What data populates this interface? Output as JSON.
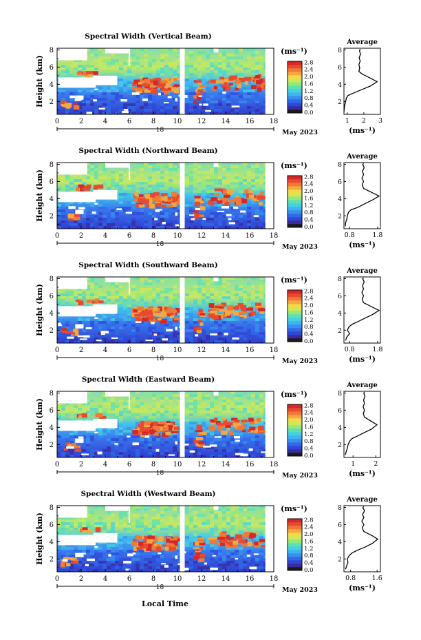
{
  "figure": {
    "xlabel_bottom": "Local Time",
    "date_label": "May 2023",
    "day_label": "18"
  },
  "colorbar": {
    "unit": "(ms⁻¹)",
    "colors": [
      "#1a1a1a",
      "#3a2b9e",
      "#3048d8",
      "#2f6ae8",
      "#3a90f0",
      "#3fb4f0",
      "#45d2e0",
      "#5fe0b0",
      "#96e87a",
      "#cfe85a",
      "#f4d84a",
      "#f5a840",
      "#f07a35",
      "#e84a30",
      "#d62828"
    ]
  },
  "chart_data": [
    {
      "type": "heatmap",
      "title": "Spectral Width (Vertical Beam)",
      "ylabel": "Height (km)",
      "xlim": [
        0,
        18
      ],
      "ylim": [
        0.5,
        8.2
      ],
      "xticks": [
        0,
        2,
        4,
        6,
        8,
        10,
        12,
        14,
        16,
        18
      ],
      "yticks": [
        2,
        4,
        6,
        8
      ],
      "gap": [
        10.2,
        10.6
      ],
      "data_end": 17.3,
      "colorbar_ticks": [
        "0.0",
        "0.4",
        "0.8",
        "1.2",
        "1.6",
        "2.0",
        "2.4",
        "2.8"
      ],
      "profile": {
        "title": "Average",
        "xlabel": "(ms⁻¹)",
        "xlim": [
          0.8,
          3.0
        ],
        "xticks": [
          1,
          2,
          3
        ],
        "xtick_labels": [
          "1",
          "2",
          "3"
        ],
        "ylim": [
          0.5,
          8.2
        ],
        "yticks": [
          2,
          4,
          6,
          8
        ],
        "points": [
          [
            0.8,
            0.8
          ],
          [
            0.82,
            1.2
          ],
          [
            0.85,
            1.6
          ],
          [
            0.9,
            2.0
          ],
          [
            0.95,
            2.4
          ],
          [
            1.05,
            2.7
          ],
          [
            1.4,
            3.0
          ],
          [
            1.9,
            3.4
          ],
          [
            2.4,
            3.8
          ],
          [
            2.8,
            4.3
          ],
          [
            2.4,
            4.7
          ],
          [
            1.9,
            5.2
          ],
          [
            1.7,
            5.5
          ],
          [
            1.75,
            5.9
          ],
          [
            1.7,
            6.3
          ],
          [
            1.78,
            6.7
          ],
          [
            1.72,
            7.1
          ],
          [
            1.8,
            7.5
          ],
          [
            1.74,
            7.9
          ],
          [
            1.78,
            8.1
          ]
        ]
      }
    },
    {
      "type": "heatmap",
      "title": "Spectral Width (Northward Beam)",
      "ylabel": "Height (km)",
      "xlim": [
        0,
        18
      ],
      "ylim": [
        0.5,
        8.2
      ],
      "xticks": [
        0,
        2,
        4,
        6,
        8,
        10,
        12,
        14,
        16,
        18
      ],
      "yticks": [
        2,
        4,
        6,
        8
      ],
      "gap": [
        10.2,
        10.6
      ],
      "data_end": 17.3,
      "colorbar_ticks": [
        "0.0",
        "0.4",
        "0.8",
        "1.2",
        "1.6",
        "2.0",
        "2.4",
        "2.8"
      ],
      "profile": {
        "title": "Average",
        "xlabel": "(ms⁻¹)",
        "xlim": [
          0.6,
          1.9
        ],
        "xticks": [
          0.8,
          1.8
        ],
        "xtick_labels": [
          "0.8",
          "1.8"
        ],
        "ylim": [
          0.5,
          8.2
        ],
        "yticks": [
          2,
          4,
          6,
          8
        ],
        "points": [
          [
            0.65,
            0.8
          ],
          [
            0.66,
            1.2
          ],
          [
            0.7,
            1.6
          ],
          [
            0.72,
            2.0
          ],
          [
            0.76,
            2.4
          ],
          [
            0.85,
            2.7
          ],
          [
            1.1,
            3.0
          ],
          [
            1.4,
            3.5
          ],
          [
            1.65,
            3.9
          ],
          [
            1.85,
            4.3
          ],
          [
            1.6,
            4.7
          ],
          [
            1.3,
            5.2
          ],
          [
            1.25,
            5.6
          ],
          [
            1.3,
            6.0
          ],
          [
            1.24,
            6.4
          ],
          [
            1.3,
            6.8
          ],
          [
            1.26,
            7.2
          ],
          [
            1.32,
            7.6
          ],
          [
            1.27,
            8.0
          ],
          [
            1.3,
            8.1
          ]
        ]
      }
    },
    {
      "type": "heatmap",
      "title": "Spectral Width (Southward Beam)",
      "ylabel": "Height (km)",
      "xlim": [
        0,
        18
      ],
      "ylim": [
        0.5,
        8.2
      ],
      "xticks": [
        0,
        2,
        4,
        6,
        8,
        10,
        12,
        14,
        16,
        18
      ],
      "yticks": [
        2,
        4,
        6,
        8
      ],
      "gap": [
        10.2,
        10.6
      ],
      "data_end": 17.3,
      "colorbar_ticks": [
        "0.0",
        "0.4",
        "0.8",
        "1.2",
        "1.6",
        "2.0",
        "2.4",
        "2.8"
      ],
      "profile": {
        "title": "Average",
        "xlabel": "(ms⁻¹)",
        "xlim": [
          0.6,
          1.9
        ],
        "xticks": [
          0.8,
          1.8
        ],
        "xtick_labels": [
          "0.8",
          "1.8"
        ],
        "ylim": [
          0.5,
          8.2
        ],
        "yticks": [
          2,
          4,
          6,
          8
        ],
        "points": [
          [
            0.66,
            0.8
          ],
          [
            0.7,
            1.2
          ],
          [
            0.8,
            1.6
          ],
          [
            0.72,
            2.0
          ],
          [
            0.78,
            2.4
          ],
          [
            0.9,
            2.7
          ],
          [
            1.1,
            3.0
          ],
          [
            1.35,
            3.4
          ],
          [
            1.6,
            3.8
          ],
          [
            1.85,
            4.3
          ],
          [
            1.6,
            4.7
          ],
          [
            1.3,
            5.2
          ],
          [
            1.25,
            5.6
          ],
          [
            1.3,
            6.0
          ],
          [
            1.24,
            6.4
          ],
          [
            1.3,
            6.8
          ],
          [
            1.26,
            7.2
          ],
          [
            1.32,
            7.6
          ],
          [
            1.27,
            8.0
          ],
          [
            1.3,
            8.1
          ]
        ]
      }
    },
    {
      "type": "heatmap",
      "title": "Spectral Width (Eastward Beam)",
      "ylabel": "Height (km)",
      "xlim": [
        0,
        18
      ],
      "ylim": [
        0.5,
        8.2
      ],
      "xticks": [
        0,
        2,
        4,
        6,
        8,
        10,
        12,
        14,
        16,
        18
      ],
      "yticks": [
        2,
        4,
        6,
        8
      ],
      "gap": [
        10.2,
        10.6
      ],
      "data_end": 17.3,
      "colorbar_ticks": [
        "0.0",
        "0.4",
        "0.8",
        "1.2",
        "1.6",
        "2.0",
        "2.4",
        "2.8"
      ],
      "profile": {
        "title": "Average",
        "xlabel": "(ms⁻¹)",
        "xlim": [
          0.6,
          2.2
        ],
        "xticks": [
          1,
          2
        ],
        "xtick_labels": [
          "1",
          "2"
        ],
        "ylim": [
          0.5,
          8.2
        ],
        "yticks": [
          2,
          4,
          6,
          8
        ],
        "points": [
          [
            0.66,
            0.8
          ],
          [
            0.7,
            1.2
          ],
          [
            0.75,
            1.6
          ],
          [
            0.78,
            2.0
          ],
          [
            0.85,
            2.4
          ],
          [
            0.95,
            2.7
          ],
          [
            1.2,
            3.0
          ],
          [
            1.5,
            3.4
          ],
          [
            1.8,
            3.8
          ],
          [
            2.05,
            4.3
          ],
          [
            1.8,
            4.7
          ],
          [
            1.5,
            5.2
          ],
          [
            1.45,
            5.6
          ],
          [
            1.5,
            6.0
          ],
          [
            1.44,
            6.4
          ],
          [
            1.5,
            6.8
          ],
          [
            1.46,
            7.2
          ],
          [
            1.52,
            7.6
          ],
          [
            1.47,
            8.0
          ],
          [
            1.5,
            8.1
          ]
        ]
      }
    },
    {
      "type": "heatmap",
      "title": "Spectral Width (Westward Beam)",
      "ylabel": "Height (km)",
      "xlim": [
        0,
        18
      ],
      "ylim": [
        0.5,
        8.2
      ],
      "xticks": [
        0,
        2,
        4,
        6,
        8,
        10,
        12,
        14,
        16,
        18
      ],
      "yticks": [
        2,
        4,
        6,
        8
      ],
      "gap": [
        10.2,
        10.6
      ],
      "data_end": 17.3,
      "colorbar_ticks": [
        "0.0",
        "0.4",
        "0.8",
        "1.2",
        "1.6",
        "2.0",
        "2.4",
        "2.8"
      ],
      "profile": {
        "title": "Average",
        "xlabel": "(ms⁻¹)",
        "xlim": [
          0.6,
          1.7
        ],
        "xticks": [
          0.8,
          1.6
        ],
        "xtick_labels": [
          "0.8",
          "1.6"
        ],
        "ylim": [
          0.5,
          8.2
        ],
        "yticks": [
          2,
          4,
          6,
          8
        ],
        "points": [
          [
            0.65,
            0.8
          ],
          [
            0.68,
            1.2
          ],
          [
            0.72,
            1.6
          ],
          [
            0.7,
            2.0
          ],
          [
            0.76,
            2.4
          ],
          [
            0.85,
            2.7
          ],
          [
            1.0,
            3.0
          ],
          [
            1.25,
            3.4
          ],
          [
            1.45,
            3.8
          ],
          [
            1.62,
            4.3
          ],
          [
            1.45,
            4.7
          ],
          [
            1.2,
            5.2
          ],
          [
            1.15,
            5.6
          ],
          [
            1.2,
            6.0
          ],
          [
            1.14,
            6.4
          ],
          [
            1.2,
            6.8
          ],
          [
            1.16,
            7.2
          ],
          [
            1.22,
            7.6
          ],
          [
            1.17,
            8.0
          ],
          [
            1.2,
            8.1
          ]
        ]
      }
    }
  ]
}
